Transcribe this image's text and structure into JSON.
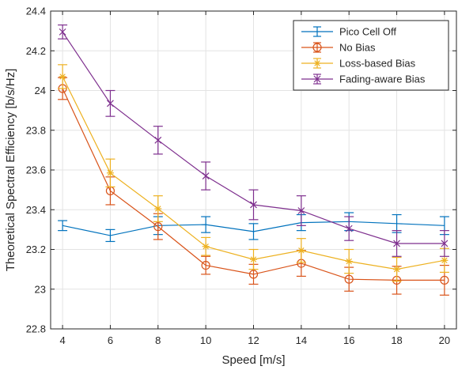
{
  "chart_data": {
    "type": "line",
    "title": "",
    "xlabel": "Speed [m/s]",
    "ylabel": "Theoretical Spectral Efficiency [b/s/Hz]",
    "xlim": [
      3.5,
      20.5
    ],
    "ylim": [
      22.8,
      24.4
    ],
    "x": [
      4,
      6,
      8,
      10,
      12,
      14,
      16,
      18,
      20
    ],
    "xticks": [
      "4",
      "6",
      "8",
      "10",
      "12",
      "14",
      "16",
      "18",
      "20"
    ],
    "yticks": [
      "22.8",
      "23",
      "23.2",
      "23.4",
      "23.6",
      "23.8",
      "24",
      "24.2",
      "24.4"
    ],
    "xtick_values": [
      4,
      6,
      8,
      10,
      12,
      14,
      16,
      18,
      20
    ],
    "ytick_values": [
      22.8,
      23.0,
      23.2,
      23.4,
      23.6,
      23.8,
      24.0,
      24.2,
      24.4
    ],
    "grid": true,
    "legend_position": "top-right",
    "series": [
      {
        "name": "Pico Cell Off",
        "color": "#0072BD",
        "marker": "none",
        "values": [
          23.32,
          23.27,
          23.32,
          23.325,
          23.29,
          23.335,
          23.34,
          23.33,
          23.32
        ],
        "errors": [
          0.025,
          0.03,
          0.045,
          0.04,
          0.04,
          0.04,
          0.045,
          0.045,
          0.045
        ]
      },
      {
        "name": "No Bias",
        "color": "#D95319",
        "marker": "circle",
        "values": [
          24.01,
          23.495,
          23.315,
          23.12,
          23.075,
          23.13,
          23.05,
          23.045,
          23.045
        ],
        "errors": [
          0.055,
          0.07,
          0.065,
          0.045,
          0.05,
          0.065,
          0.06,
          0.07,
          0.075
        ]
      },
      {
        "name": "Loss-based Bias",
        "color": "#EDB120",
        "marker": "star",
        "values": [
          24.07,
          23.585,
          23.405,
          23.215,
          23.15,
          23.195,
          23.14,
          23.1,
          23.145
        ],
        "errors": [
          0.06,
          0.07,
          0.065,
          0.045,
          0.05,
          0.06,
          0.06,
          0.06,
          0.06
        ]
      },
      {
        "name": "Fading-aware Bias",
        "color": "#7E2F8E",
        "marker": "x",
        "values": [
          24.295,
          23.935,
          23.75,
          23.57,
          23.425,
          23.395,
          23.305,
          23.23,
          23.23
        ],
        "errors": [
          0.035,
          0.065,
          0.07,
          0.07,
          0.075,
          0.075,
          0.06,
          0.065,
          0.065
        ]
      }
    ]
  }
}
